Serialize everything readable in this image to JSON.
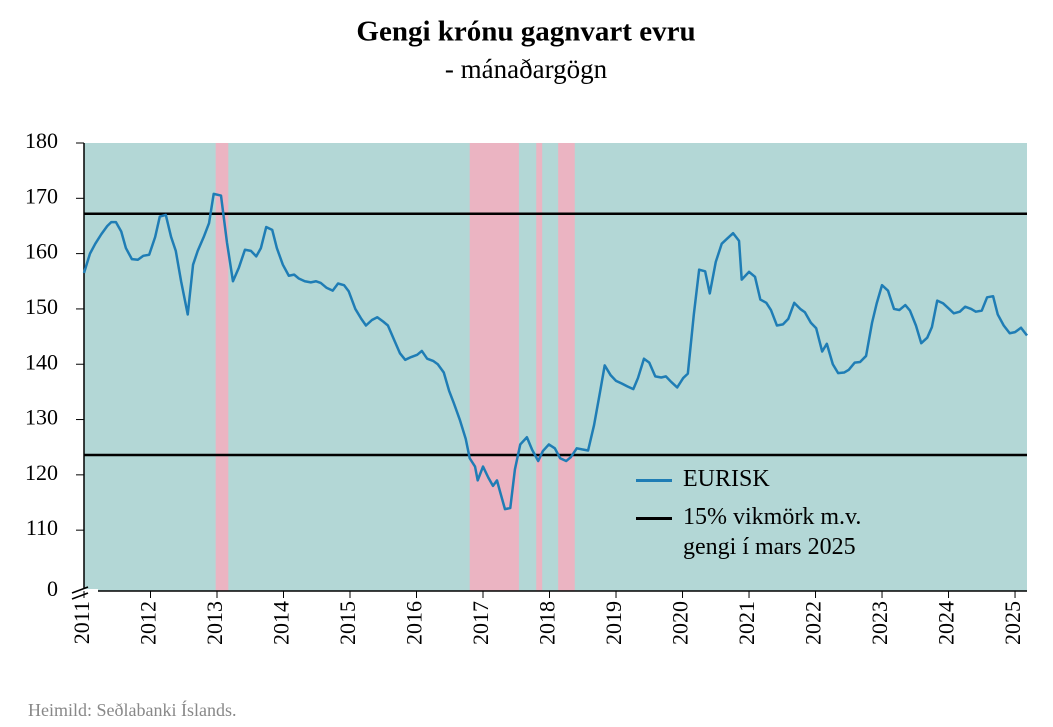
{
  "chart_data": {
    "type": "line",
    "title": "Gengi krónu gagnvart evru",
    "subtitle": "-  mánaðargögn",
    "source": "Heimild: Seðlabanki Íslands.",
    "background": "#b3d7d6",
    "shaded_color": "#ebb4c2",
    "shaded_periods": [
      [
        2012.98,
        2013.17
      ],
      [
        2016.8,
        2017.54
      ],
      [
        2017.8,
        2017.89
      ],
      [
        2018.13,
        2018.38
      ]
    ],
    "xlim": [
      2011,
      2025.18
    ],
    "xticks": [
      2011,
      2012,
      2013,
      2014,
      2015,
      2016,
      2017,
      2018,
      2019,
      2020,
      2021,
      2022,
      2023,
      2024,
      2025
    ],
    "ylim": [
      0,
      180
    ],
    "y_break": [
      0,
      99
    ],
    "yticks": [
      0,
      110,
      120,
      130,
      140,
      150,
      160,
      170,
      180
    ],
    "reference_lines": {
      "name": "15% vikmörk m.v.\ngengi  í mars 2025",
      "color": "#000000",
      "values": [
        167.2,
        123.6
      ]
    },
    "series": [
      {
        "name": "EURISK",
        "color": "#1f7db5",
        "x": [
          2011.0,
          2011.09,
          2011.17,
          2011.26,
          2011.35,
          2011.41,
          2011.48,
          2011.56,
          2011.63,
          2011.72,
          2011.81,
          2011.89,
          2011.98,
          2012.07,
          2012.14,
          2012.23,
          2012.31,
          2012.38,
          2012.46,
          2012.56,
          2012.64,
          2012.71,
          2012.8,
          2012.88,
          2012.95,
          2013.06,
          2013.15,
          2013.24,
          2013.33,
          2013.42,
          2013.51,
          2013.59,
          2013.66,
          2013.74,
          2013.83,
          2013.9,
          2013.99,
          2014.08,
          2014.16,
          2014.23,
          2014.32,
          2014.41,
          2014.49,
          2014.56,
          2014.65,
          2014.74,
          2014.82,
          2014.91,
          2014.98,
          2015.08,
          2015.17,
          2015.24,
          2015.33,
          2015.41,
          2015.5,
          2015.57,
          2015.66,
          2015.75,
          2015.83,
          2015.92,
          2016.01,
          2016.08,
          2016.16,
          2016.25,
          2016.32,
          2016.41,
          2016.49,
          2016.56,
          2016.65,
          2016.74,
          2016.8,
          2016.88,
          2016.92,
          2017.0,
          2017.08,
          2017.15,
          2017.21,
          2017.26,
          2017.33,
          2017.41,
          2017.48,
          2017.56,
          2017.66,
          2017.74,
          2017.83,
          2017.9,
          2017.99,
          2018.08,
          2018.16,
          2018.25,
          2018.32,
          2018.41,
          2018.49,
          2018.58,
          2018.67,
          2018.76,
          2018.83,
          2018.92,
          2019.0,
          2019.09,
          2019.17,
          2019.26,
          2019.33,
          2019.42,
          2019.5,
          2019.59,
          2019.68,
          2019.75,
          2019.83,
          2019.92,
          2020.01,
          2020.08,
          2020.17,
          2020.25,
          2020.34,
          2020.41,
          2020.5,
          2020.59,
          2020.67,
          2020.76,
          2020.85,
          2020.89,
          2021.0,
          2021.09,
          2021.17,
          2021.26,
          2021.33,
          2021.42,
          2021.51,
          2021.59,
          2021.68,
          2021.77,
          2021.84,
          2021.93,
          2022.01,
          2022.1,
          2022.17,
          2022.26,
          2022.34,
          2022.43,
          2022.5,
          2022.59,
          2022.67,
          2022.76,
          2022.85,
          2022.92,
          2023.0,
          2023.09,
          2023.18,
          2023.26,
          2023.35,
          2023.42,
          2023.51,
          2023.59,
          2023.68,
          2023.75,
          2023.83,
          2023.92,
          2024.01,
          2024.08,
          2024.17,
          2024.25,
          2024.34,
          2024.41,
          2024.5,
          2024.58,
          2024.67,
          2024.74,
          2024.83,
          2024.92,
          2025.0,
          2025.09,
          2025.18
        ],
        "values": [
          156.5,
          160,
          161.8,
          163.5,
          165,
          165.7,
          165.7,
          164,
          161,
          159,
          158.9,
          159.6,
          159.8,
          163,
          166.7,
          167,
          163,
          160.5,
          155,
          149,
          158,
          160.5,
          163,
          165.5,
          170.8,
          170.5,
          162,
          155,
          157.5,
          160.7,
          160.5,
          159.5,
          161,
          164.8,
          164.3,
          161,
          158,
          156,
          156.2,
          155.5,
          155,
          154.8,
          155,
          154.7,
          153.8,
          153.3,
          154.6,
          154.3,
          153.2,
          150,
          148.2,
          147,
          148,
          148.5,
          147.7,
          147,
          144.5,
          142,
          140.8,
          141.3,
          141.7,
          142.4,
          141,
          140.6,
          140,
          138.5,
          135.2,
          133,
          130,
          126.5,
          123,
          121.5,
          119,
          121.5,
          119.5,
          118,
          119,
          116.8,
          113.8,
          114,
          121,
          125.5,
          126.8,
          124.5,
          122.5,
          124.3,
          125.5,
          124.8,
          123,
          122.5,
          123.2,
          124.8,
          124.6,
          124.4,
          129,
          135,
          139.8,
          138,
          137,
          136.5,
          136,
          135.5,
          137.5,
          141,
          140.3,
          137.8,
          137.6,
          137.8,
          136.8,
          135.8,
          137.5,
          138.3,
          149,
          157.1,
          156.8,
          152.8,
          158.5,
          161.8,
          162.7,
          163.7,
          162.3,
          155.3,
          156.7,
          155.8,
          151.7,
          151.1,
          149.8,
          147,
          147.2,
          148.2,
          151.1,
          150,
          149.4,
          147.5,
          146.5,
          142.3,
          143.7,
          140,
          138.4,
          138.5,
          139,
          140.3,
          140.4,
          141.5,
          147.5,
          151,
          154.3,
          153.3,
          150,
          149.8,
          150.7,
          149.7,
          147,
          143.8,
          144.8,
          146.7,
          151.5,
          151,
          150,
          149.2,
          149.5,
          150.4,
          150,
          149.5,
          149.7,
          152.1,
          152.3,
          149,
          147,
          145.6,
          145.8,
          146.6,
          145.2
        ]
      }
    ]
  }
}
